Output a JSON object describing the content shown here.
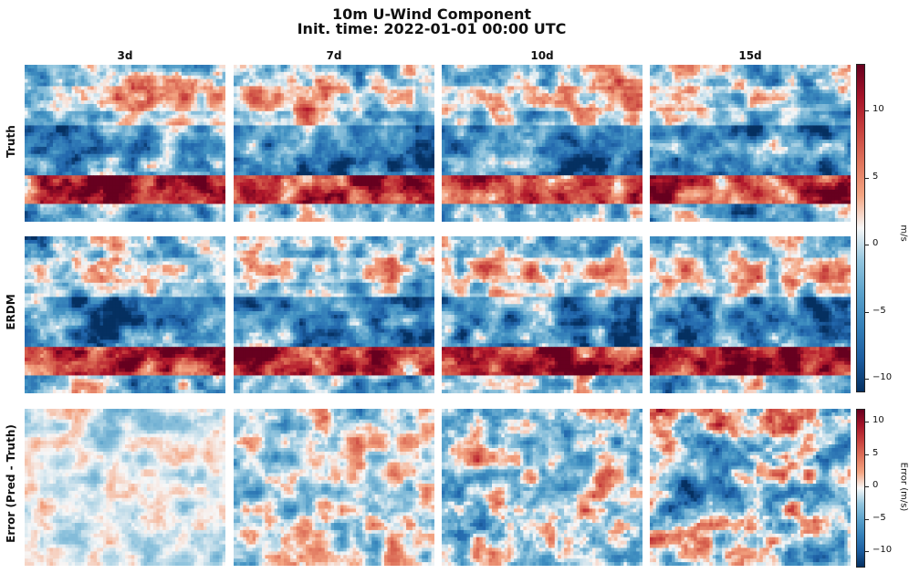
{
  "chart_data": {
    "type": "heatmap",
    "title": "10m U-Wind Component",
    "subtitle": "Init. time: 2022-01-01 00:00 UTC",
    "columns": [
      "3d",
      "7d",
      "10d",
      "15d"
    ],
    "rows": [
      "Truth",
      "ERDM",
      "Error (Pred - Truth)"
    ],
    "colormap": "RdBu_r",
    "colors": {
      "low": "#08306b",
      "mid": "#f7f7f7",
      "high": "#67001f"
    },
    "colorbars": [
      {
        "name": "field",
        "label": "m/s",
        "range": [
          -11,
          13.5
        ],
        "ticks": [
          10,
          5,
          0,
          -5,
          -10
        ],
        "tick_labels": [
          "10",
          "5",
          "0",
          "−5",
          "−10"
        ]
      },
      {
        "name": "error",
        "label": "Error (m/s)",
        "range": [
          -12.5,
          12
        ],
        "ticks": [
          10,
          5,
          0,
          -5,
          -10
        ],
        "tick_labels": [
          "10",
          "5",
          "0",
          "−5",
          "−10"
        ]
      }
    ]
  }
}
